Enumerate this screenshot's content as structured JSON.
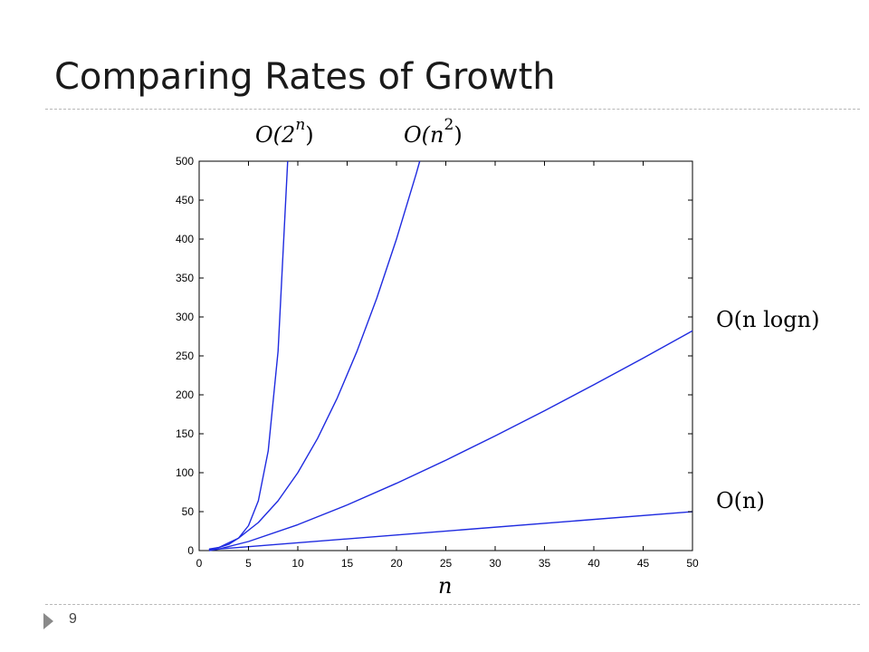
{
  "slide": {
    "title": "Comparing Rates of Growth",
    "page_number": "9"
  },
  "labels": {
    "exp": {
      "prefix": "O(2",
      "sup": "n",
      "suffix": ")"
    },
    "quad": {
      "prefix": "O(n",
      "sup": "2",
      "suffix": ")"
    },
    "nlogn": "O(n logn)",
    "linear": "O(n)"
  },
  "colors": {
    "curve": "#1f2be0",
    "axis": "#000000"
  },
  "chart_data": {
    "type": "line",
    "xlabel": "n",
    "ylabel": "",
    "xlim": [
      0,
      50
    ],
    "ylim": [
      0,
      500
    ],
    "xticks": [
      0,
      5,
      10,
      15,
      20,
      25,
      30,
      35,
      40,
      45,
      50
    ],
    "yticks": [
      0,
      50,
      100,
      150,
      200,
      250,
      300,
      350,
      400,
      450,
      500
    ],
    "grid": false,
    "series": [
      {
        "name": "O(2^n)",
        "x": [
          1,
          2,
          3,
          4,
          5,
          6,
          7,
          8,
          8.97
        ],
        "y": [
          2,
          4,
          8,
          16,
          32,
          64,
          128,
          256,
          500
        ]
      },
      {
        "name": "O(n^2)",
        "x": [
          1,
          2,
          4,
          6,
          8,
          10,
          12,
          14,
          16,
          18,
          20,
          22,
          22.36
        ],
        "y": [
          1,
          4,
          16,
          36,
          64,
          100,
          144,
          196,
          256,
          324,
          400,
          484,
          500
        ]
      },
      {
        "name": "O(n logn)",
        "x": [
          1,
          2,
          5,
          10,
          15,
          20,
          25,
          30,
          35,
          40,
          45,
          50
        ],
        "y": [
          0,
          2,
          11.6,
          33.2,
          58.6,
          86.4,
          116.1,
          147.2,
          179.5,
          212.9,
          247.1,
          282.2
        ]
      },
      {
        "name": "O(n)",
        "x": [
          1,
          50
        ],
        "y": [
          1,
          50
        ]
      }
    ]
  }
}
